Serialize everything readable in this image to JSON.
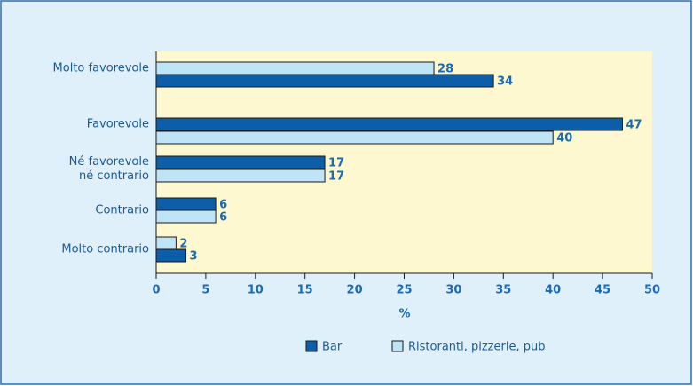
{
  "chart_data": {
    "type": "hbar",
    "categories": [
      "Molto favorevole",
      "Favorevole",
      "Né favorevole\nné contrario",
      "Contrario",
      "Molto contrario"
    ],
    "series": [
      {
        "name": "Bar",
        "color": "#0d5ea8",
        "values": [
          34,
          47,
          17,
          6,
          3
        ]
      },
      {
        "name": "Ristoranti, pizzerie, pub",
        "color": "#bfe4f6",
        "values": [
          28,
          40,
          17,
          6,
          2
        ]
      }
    ],
    "xlabel": "%",
    "xlim": [
      0,
      50
    ],
    "xticks": [
      0,
      5,
      10,
      15,
      20,
      25,
      30,
      35,
      40,
      45,
      50
    ]
  }
}
